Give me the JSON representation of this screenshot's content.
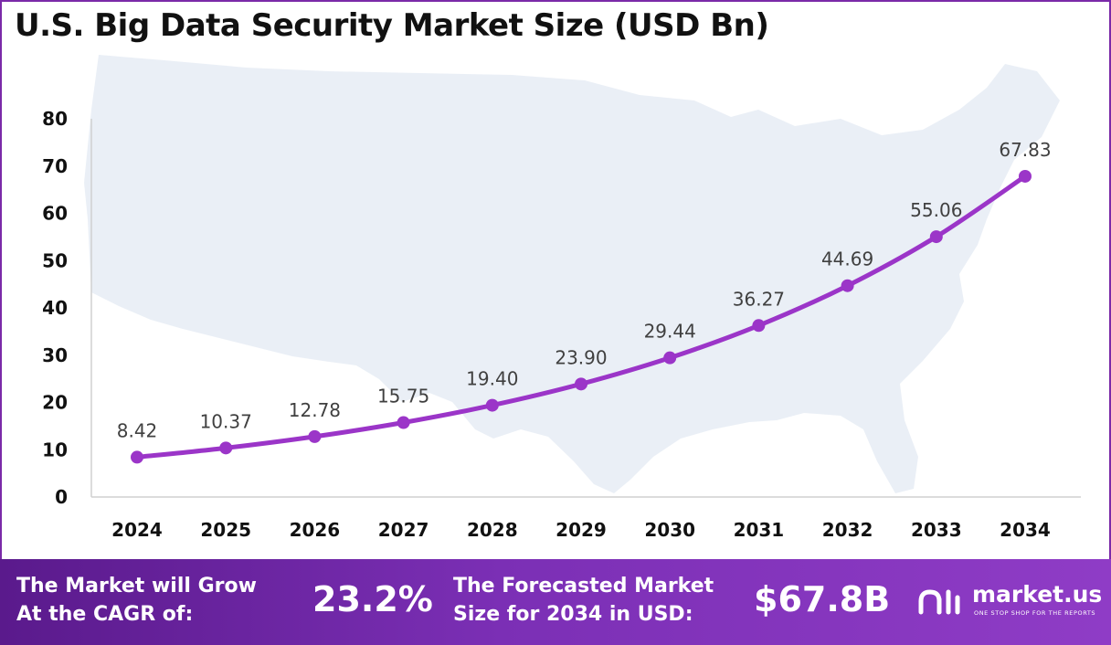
{
  "title": "U.S. Big Data Security Market Size (USD Bn)",
  "chart_data": {
    "type": "line",
    "title": "U.S. Big Data Security Market Size (USD Bn)",
    "categories": [
      "2024",
      "2025",
      "2026",
      "2027",
      "2028",
      "2029",
      "2030",
      "2031",
      "2032",
      "2033",
      "2034"
    ],
    "values": [
      8.42,
      10.37,
      12.78,
      15.75,
      19.4,
      23.9,
      29.44,
      36.27,
      44.69,
      55.06,
      67.83
    ],
    "data_labels": [
      "8.42",
      "10.37",
      "12.78",
      "15.75",
      "19.40",
      "23.90",
      "29.44",
      "36.27",
      "44.69",
      "55.06",
      "67.83"
    ],
    "ylim": [
      0,
      80
    ],
    "yticks": [
      "0",
      "10",
      "20",
      "30",
      "40",
      "50",
      "60",
      "70",
      "80"
    ],
    "xlabel": "",
    "ylabel": "",
    "grid": false,
    "line_color": "#9b35c8"
  },
  "footer": {
    "cagr_label": "The Market will Grow\nAt the CAGR of:",
    "cagr_value": "23.2%",
    "forecast_label": "The Forecasted Market\nSize for 2034 in USD:",
    "forecast_value": "$67.8B",
    "brand": "market.us",
    "tagline": "ONE STOP SHOP FOR THE REPORTS"
  },
  "icons": [
    "us-map-icon",
    "market-us-logo-icon"
  ]
}
